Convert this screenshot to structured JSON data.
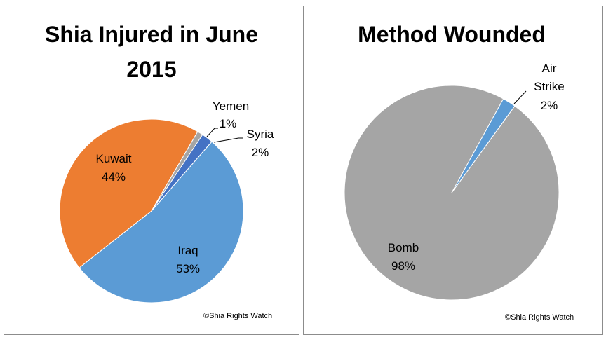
{
  "chart_data": [
    {
      "type": "pie",
      "title_lines": [
        "Shia Injured in June",
        "2015"
      ],
      "slices": [
        {
          "label": "Iraq",
          "value": 53,
          "pct": "53%",
          "color": "#5b9bd5"
        },
        {
          "label": "Kuwait",
          "value": 44,
          "pct": "44%",
          "color": "#ed7d31"
        },
        {
          "label": "Yemen",
          "value": 1,
          "pct": "1%",
          "color": "#a5a5a5"
        },
        {
          "label": "Syria",
          "value": 2,
          "pct": "2%",
          "color": "#4472c4"
        }
      ],
      "watermark": "©Shia Rights Watch"
    },
    {
      "type": "pie",
      "title_lines": [
        "Method Wounded"
      ],
      "slices": [
        {
          "label": "Bomb",
          "value": 98,
          "pct": "98%",
          "color": "#a5a5a5"
        },
        {
          "label": "Air Strike",
          "value": 2,
          "pct": "2%",
          "color": "#5b9bd5"
        }
      ],
      "watermark": "©Shia Rights Watch"
    }
  ]
}
